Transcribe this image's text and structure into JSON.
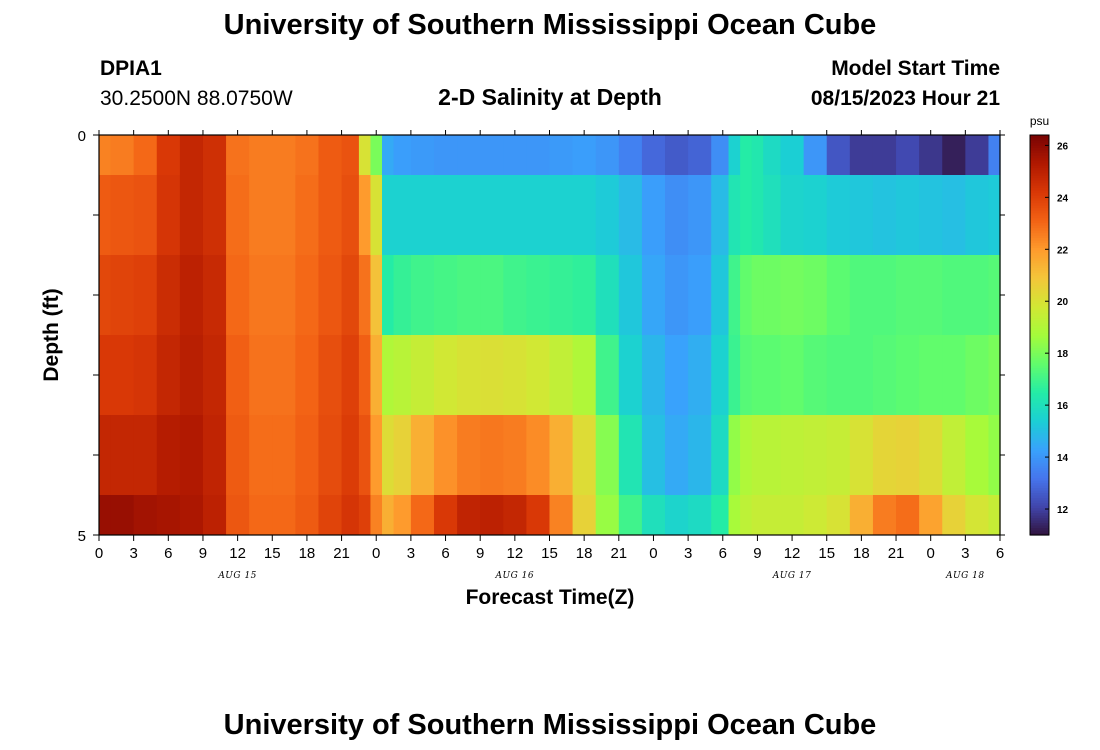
{
  "header": {
    "title": "University of Southern Mississippi Ocean Cube",
    "station_id": "DPIA1",
    "coords": "30.2500N  88.0750W",
    "chart_title": "2-D Salinity at Depth",
    "model_label": "Model Start Time",
    "model_time": "08/15/2023 Hour 21"
  },
  "footer": {
    "title": "University of Southern Mississippi Ocean Cube"
  },
  "chart_data": {
    "type": "heatmap",
    "title": "2-D Salinity at Depth",
    "xlabel": "Forecast Time(Z)",
    "ylabel": "Depth (ft)",
    "colorbar_unit": "psu",
    "colorbar_range": [
      11,
      26.4
    ],
    "colorbar_ticks": [
      "26",
      "24",
      "22",
      "20",
      "18",
      "16",
      "14",
      "12"
    ],
    "colormap": [
      "#30123b",
      "#4145ab",
      "#4675ed",
      "#39a2fc",
      "#1bcfd4",
      "#24eca6",
      "#61fc6c",
      "#a4fc3b",
      "#d1e834",
      "#f3c63a",
      "#fe9b2d",
      "#f36315",
      "#d93806",
      "#b11901",
      "#7a0403"
    ],
    "y_tick_labels": [
      "0",
      "5"
    ],
    "y_range": [
      0,
      5
    ],
    "x_tick_labels": [
      "0",
      "3",
      "6",
      "9",
      "12",
      "15",
      "18",
      "21",
      "0",
      "3",
      "6",
      "9",
      "12",
      "15",
      "18",
      "21",
      "0",
      "3",
      "6",
      "9",
      "12",
      "15",
      "18",
      "21",
      "0",
      "3",
      "6"
    ],
    "x_range_hours": [
      0,
      78
    ],
    "day_labels": [
      {
        "hour": 12,
        "text": "AUG 15"
      },
      {
        "hour": 36,
        "text": "AUG 16"
      },
      {
        "hour": 60,
        "text": "AUG 17"
      },
      {
        "hour": 75,
        "text": "AUG 18"
      }
    ],
    "time_hours": [
      0,
      2,
      4,
      6,
      8,
      10,
      12,
      14,
      16,
      18,
      20,
      22,
      23,
      24,
      25,
      26,
      28,
      30,
      32,
      34,
      36,
      38,
      40,
      42,
      44,
      46,
      48,
      50,
      52,
      54,
      55,
      56,
      57,
      58,
      60,
      62,
      64,
      66,
      68,
      70,
      72,
      74,
      76,
      78
    ],
    "depth_rows": [
      {
        "depth": "0.0-0.5",
        "values": [
          22.5,
          22.6,
          23.0,
          24.2,
          24.8,
          24.5,
          22.8,
          22.6,
          22.6,
          22.8,
          23.3,
          23.5,
          20,
          18,
          14.5,
          14.2,
          14.1,
          14.0,
          14.0,
          14.0,
          14.0,
          14.0,
          14.1,
          14.2,
          14.0,
          13.5,
          12.9,
          12.6,
          12.8,
          13.8,
          15.5,
          16.5,
          16.3,
          15.8,
          15.4,
          14.0,
          12.5,
          11.9,
          11.9,
          12.2,
          11.8,
          11.3,
          11.9,
          13.5
        ]
      },
      {
        "depth": "0.5-1.5",
        "values": [
          23.3,
          23.4,
          23.5,
          24.3,
          24.8,
          24.5,
          22.9,
          22.6,
          22.6,
          22.9,
          23.3,
          23.6,
          22,
          20,
          15.5,
          15.5,
          15.5,
          15.5,
          15.5,
          15.5,
          15.5,
          15.5,
          15.5,
          15.5,
          15.3,
          14.9,
          14.2,
          13.8,
          14.0,
          14.9,
          16.2,
          16.5,
          16.3,
          16.0,
          15.6,
          15.5,
          15.3,
          15.2,
          15.1,
          15.2,
          15.1,
          15.0,
          15.2,
          15.3
        ]
      },
      {
        "depth": "1.5-2.5",
        "values": [
          23.8,
          23.9,
          24.0,
          24.6,
          25.0,
          24.7,
          23.0,
          22.7,
          22.7,
          23.0,
          23.4,
          23.8,
          22.8,
          21.0,
          16.5,
          16.8,
          17.0,
          17.1,
          17.2,
          17.2,
          17.0,
          16.9,
          16.8,
          16.7,
          16.0,
          15.2,
          14.4,
          14.0,
          14.2,
          15.2,
          17.0,
          17.6,
          17.8,
          17.8,
          17.9,
          17.8,
          17.5,
          17.3,
          17.3,
          17.4,
          17.4,
          17.3,
          17.3,
          17.4
        ]
      },
      {
        "depth": "2.5-3.5",
        "values": [
          24.2,
          24.2,
          24.3,
          24.8,
          25.1,
          24.8,
          23.2,
          22.8,
          22.8,
          23.1,
          23.6,
          24.0,
          23.2,
          21.5,
          19.0,
          19.2,
          19.5,
          19.8,
          20.0,
          20.1,
          20.0,
          19.8,
          19.4,
          19.0,
          17.0,
          15.5,
          14.8,
          14.3,
          14.6,
          15.5,
          16.9,
          17.4,
          17.5,
          17.5,
          17.6,
          17.4,
          17.3,
          17.3,
          17.4,
          17.5,
          17.6,
          17.6,
          17.8,
          18.0
        ]
      },
      {
        "depth": "3.5-4.5",
        "values": [
          24.8,
          24.8,
          24.8,
          25.2,
          25.3,
          24.9,
          23.3,
          22.9,
          22.9,
          23.2,
          23.7,
          24.1,
          23.5,
          22.0,
          20.2,
          20.5,
          21.5,
          22.2,
          22.6,
          22.7,
          22.6,
          22.3,
          21.5,
          20.2,
          18.2,
          16.2,
          15.0,
          14.5,
          14.8,
          15.8,
          18.4,
          19.0,
          19.2,
          19.2,
          19.3,
          19.4,
          19.5,
          20.0,
          20.4,
          20.5,
          20.2,
          19.4,
          18.8,
          18.4
        ]
      },
      {
        "depth": "4.5-5.0",
        "values": [
          25.8,
          25.8,
          25.6,
          25.5,
          25.4,
          25.0,
          23.4,
          23.0,
          23.0,
          23.3,
          23.9,
          24.3,
          24.0,
          22.5,
          21.5,
          22.0,
          23.0,
          24.2,
          24.9,
          25.0,
          24.8,
          24.2,
          22.5,
          20.5,
          18.5,
          17.0,
          16.0,
          15.6,
          15.8,
          16.5,
          18.8,
          19.3,
          19.5,
          19.5,
          19.5,
          19.7,
          20.0,
          21.5,
          22.6,
          22.9,
          21.8,
          20.5,
          19.9,
          19.5
        ]
      }
    ]
  }
}
